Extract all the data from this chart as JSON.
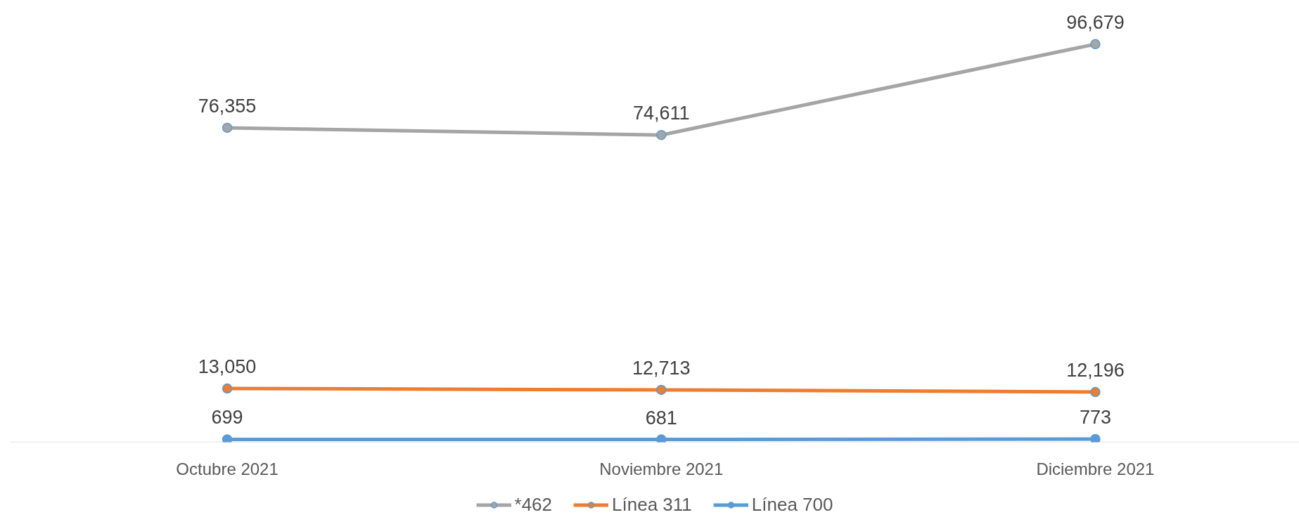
{
  "chart_data": {
    "type": "line",
    "categories": [
      "Octubre 2021",
      "Noviembre 2021",
      "Diciembre 2021"
    ],
    "series": [
      {
        "name": "*462",
        "color": "#a5a5a5",
        "values": [
          76355,
          74611,
          96679
        ],
        "value_labels": [
          "76,355",
          "74,611",
          "96,679"
        ]
      },
      {
        "name": "Línea 311",
        "color": "#ed7d31",
        "values": [
          13050,
          12713,
          12196
        ],
        "value_labels": [
          "13,050",
          "12,713",
          "12,196"
        ]
      },
      {
        "name": "Línea 700",
        "color": "#5b9bd5",
        "values": [
          699,
          681,
          773
        ],
        "value_labels": [
          "699",
          "681",
          "773"
        ]
      }
    ],
    "tick_labels": "x",
    "marker": "circle",
    "grid": false,
    "legend": "bottom"
  }
}
